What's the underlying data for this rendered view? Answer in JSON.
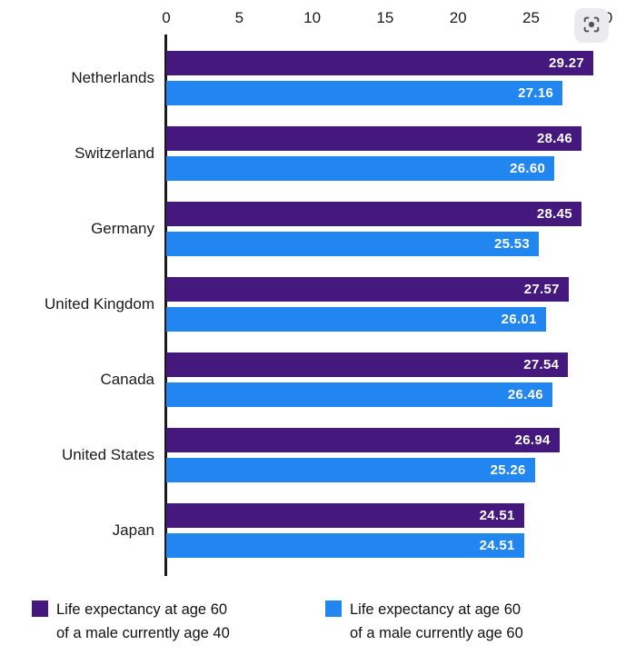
{
  "toolbar": {
    "lens_icon": "lens-scan-icon"
  },
  "chart_data": {
    "type": "bar",
    "orientation": "horizontal",
    "title": "",
    "xlabel": "",
    "ylabel": "",
    "x_axis": {
      "position": "top",
      "min": 0,
      "max": 30,
      "ticks": [
        "0",
        "5",
        "10",
        "15",
        "20",
        "25",
        "30"
      ]
    },
    "grid": false,
    "legend_position": "bottom",
    "categories": [
      "Netherlands",
      "Switzerland",
      "Germany",
      "United Kingdom",
      "Canada",
      "United States",
      "Japan"
    ],
    "series": [
      {
        "name": "Life expectancy at age 60 of a male currently age 40",
        "color": "#45187D",
        "values": [
          "29.27",
          "28.46",
          "28.45",
          "27.57",
          "27.54",
          "26.94",
          "24.51"
        ]
      },
      {
        "name": "Life expectancy at age 60 of a male currently age 60",
        "color": "#2286F0",
        "values": [
          "27.16",
          "26.60",
          "25.53",
          "26.01",
          "26.46",
          "25.26",
          "24.51"
        ]
      }
    ],
    "legend": [
      {
        "lines": [
          "Life expectancy at age 60",
          "of a male currently age 40"
        ],
        "color": "#45187D"
      },
      {
        "lines": [
          "Life expectancy at age 60",
          "of a male currently age 60"
        ],
        "color": "#2286F0"
      }
    ]
  }
}
